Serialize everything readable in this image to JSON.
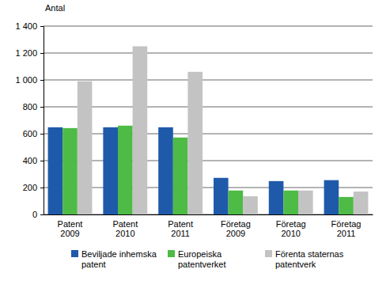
{
  "chart_data": {
    "type": "bar",
    "y_label": "Antal",
    "categories": [
      "Patent 2009",
      "Patent 2010",
      "Patent 2011",
      "Företag 2009",
      "Företag 2010",
      "Företag 2011"
    ],
    "series": [
      {
        "name": "Beviljade inhemska patent",
        "color": "#1f5aaa",
        "values": [
          648,
          648,
          648,
          272,
          248,
          255
        ]
      },
      {
        "name": "Europeiska patentverket",
        "color": "#4dbb46",
        "values": [
          642,
          660,
          572,
          178,
          178,
          130
        ]
      },
      {
        "name": "Förenta staternas patentverk",
        "color": "#c3c3c3",
        "values": [
          990,
          1250,
          1060,
          135,
          178,
          170
        ]
      }
    ],
    "ylim": [
      0,
      1400
    ],
    "yticks": [
      0,
      200,
      400,
      600,
      800,
      {
        "value": 1000,
        "label": "1 000"
      },
      {
        "value": 1200,
        "label": "1 200"
      },
      {
        "value": 1400,
        "label": "1 400"
      }
    ],
    "grid": true,
    "legend": "bottom"
  }
}
